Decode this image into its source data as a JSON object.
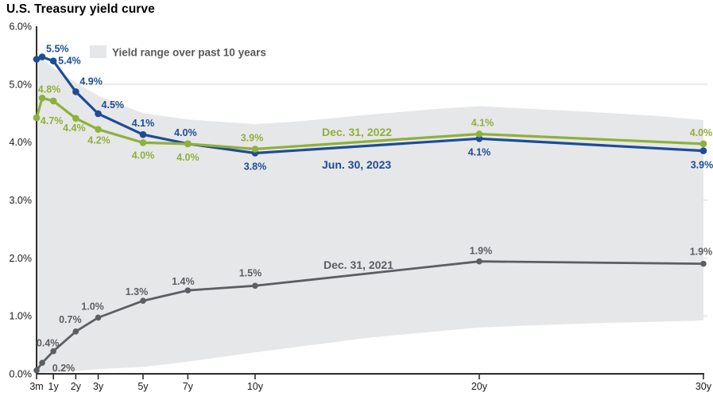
{
  "page": {
    "title": "U.S. Treasury yield curve"
  },
  "legend": {
    "band_label": "Yield range over past 10 years"
  },
  "colors": {
    "jun_2023": "#1e4c96",
    "dec_2022": "#8fb03a",
    "dec_2021": "#5b5e63",
    "band": "#e6e7e8",
    "gridline": "#d6d7d9",
    "axis": "#2e2e2e",
    "axis_text": "#1a1a1a"
  },
  "chart_data": {
    "type": "line",
    "title": "U.S. Treasury yield curve",
    "x_axis": {
      "tick_labels": [
        "3m",
        "1y",
        "2y",
        "3y",
        "5y",
        "7y",
        "10y",
        "20y",
        "30y"
      ],
      "tick_maturities": [
        0.25,
        1,
        2,
        3,
        5,
        7,
        10,
        20,
        30
      ]
    },
    "y_axis": {
      "tick_labels": [
        "0.0%",
        "1.0%",
        "2.0%",
        "3.0%",
        "4.0%",
        "5.0%",
        "6.0%"
      ],
      "tick_values": [
        0,
        1,
        2,
        3,
        4,
        5,
        6
      ],
      "range": [
        0,
        6
      ],
      "gridline_values": [
        1,
        2,
        3,
        4,
        5
      ]
    },
    "maturities_years": [
      0.25,
      0.5,
      1,
      2,
      3,
      5,
      7,
      10,
      20,
      30
    ],
    "series": [
      {
        "name": "Dec. 31, 2021",
        "color": "#5b5e63",
        "values": [
          0.06,
          0.19,
          0.39,
          0.73,
          0.97,
          1.26,
          1.44,
          1.52,
          1.94,
          1.9
        ],
        "point_labels": [
          "",
          "0.2%",
          "0.4%",
          "0.7%",
          "1.0%",
          "1.3%",
          "1.4%",
          "1.5%",
          "1.9%",
          "1.9%"
        ]
      },
      {
        "name": "Jun. 30, 2023",
        "color": "#1e4c96",
        "values": [
          5.43,
          5.47,
          5.4,
          4.87,
          4.49,
          4.13,
          3.97,
          3.81,
          4.06,
          3.85
        ],
        "point_labels": [
          "",
          "5.5%",
          "5.4%",
          "4.9%",
          "4.5%",
          "4.1%",
          "4.0%",
          "3.8%",
          "4.1%",
          "3.9%"
        ]
      },
      {
        "name": "Dec. 31, 2022",
        "color": "#8fb03a",
        "values": [
          4.42,
          4.76,
          4.71,
          4.41,
          4.22,
          3.99,
          3.97,
          3.88,
          4.14,
          3.97
        ],
        "point_labels": [
          "",
          "4.8%",
          "4.7%",
          "4.4%",
          "4.2%",
          "4.0%",
          "4.0%",
          "3.9%",
          "4.1%",
          "4.0%"
        ]
      }
    ],
    "band": {
      "label": "Yield range over past 10 years",
      "maturities": [
        0.25,
        0.5,
        1,
        2,
        3,
        5,
        7,
        10,
        12,
        15,
        18,
        20,
        22,
        25,
        28,
        30
      ],
      "upper": [
        5.45,
        5.44,
        5.28,
        5.03,
        4.8,
        4.5,
        4.39,
        4.31,
        4.36,
        4.47,
        4.57,
        4.62,
        4.58,
        4.52,
        4.45,
        4.38
      ],
      "lower": [
        0.02,
        0.02,
        0.03,
        0.05,
        0.08,
        0.12,
        0.21,
        0.37,
        0.47,
        0.62,
        0.73,
        0.8,
        0.83,
        0.87,
        0.9,
        0.92
      ]
    }
  }
}
